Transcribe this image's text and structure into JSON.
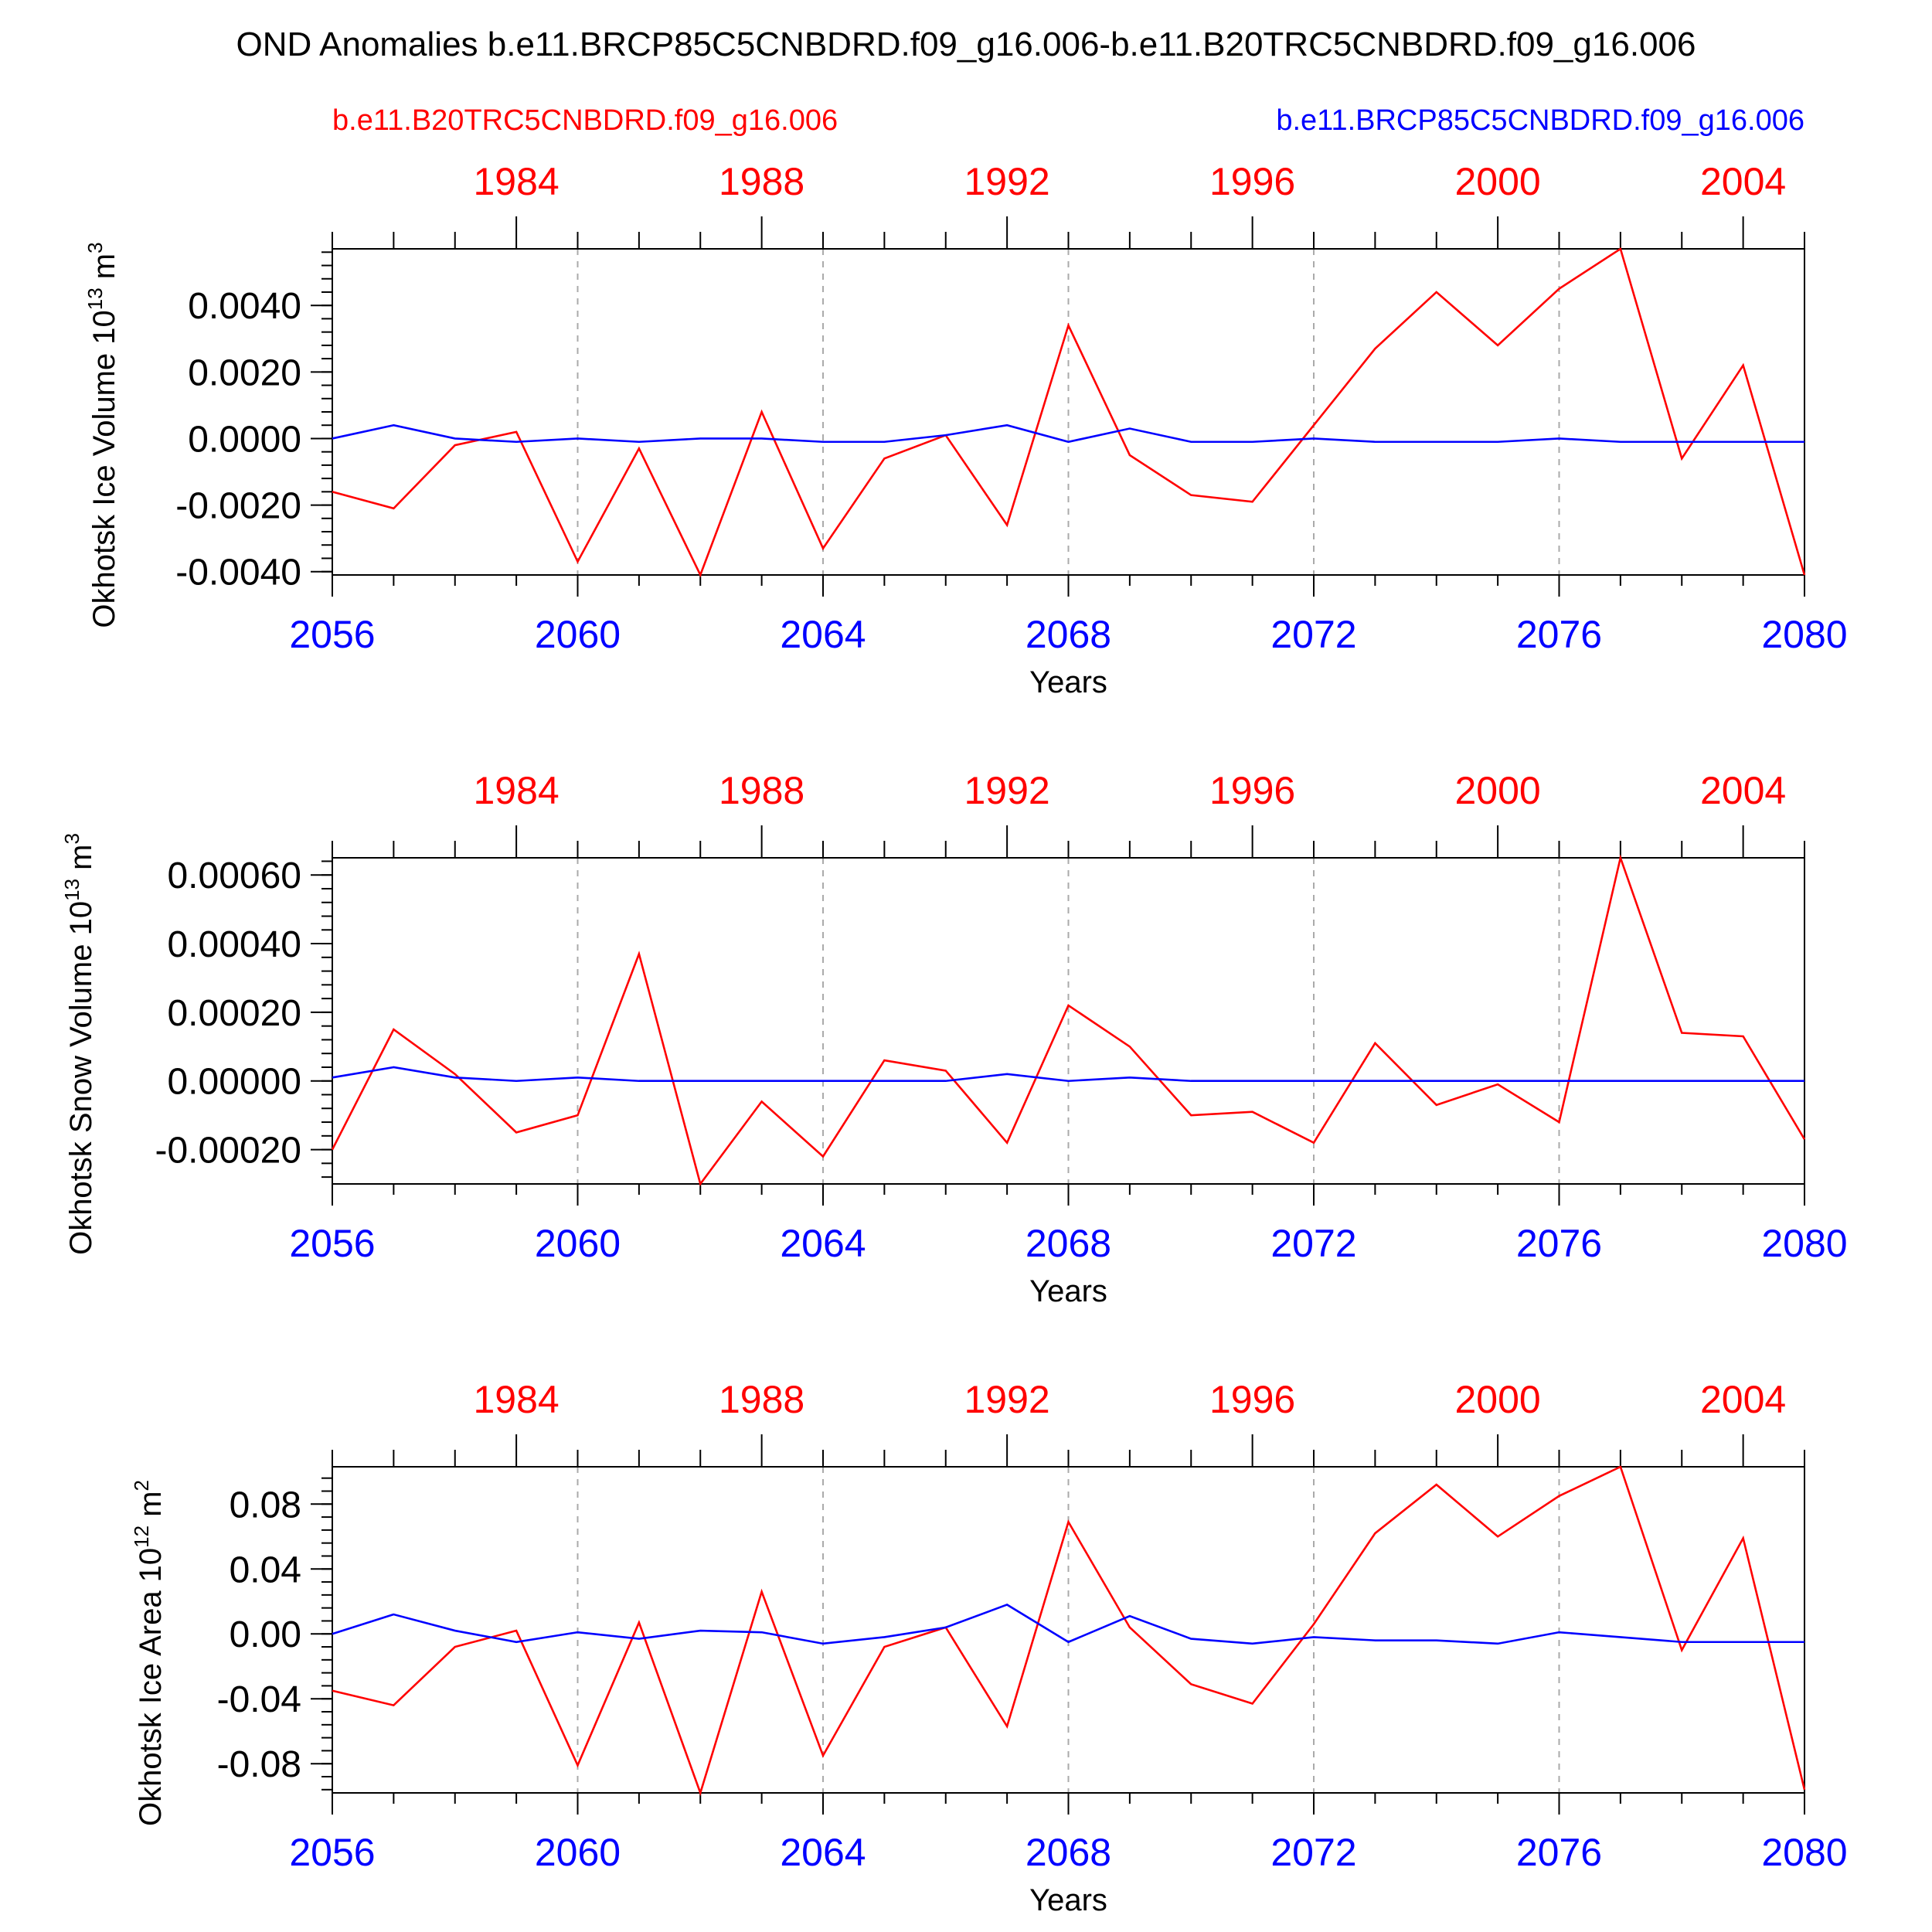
{
  "title": "OND Anomalies b.e11.BRCP85C5CNBDRD.f09_g16.006-b.e11.B20TRC5CNBDRD.f09_g16.006",
  "legend": {
    "red_label": "b.e11.B20TRC5CNBDRD.f09_g16.006",
    "blue_label": "b.e11.BRCP85C5CNBDRD.f09_g16.006"
  },
  "colors": {
    "red": "#ff0000",
    "blue": "#0000ff",
    "axis": "#000000",
    "grid": "#aaaaaa"
  },
  "chart_data": [
    {
      "type": "line",
      "ylabel": "Okhotsk Ice Volume 10",
      "ylabel_exp": "13",
      "ylabel_unit": "m",
      "ylabel_unit_exp": "3",
      "xlabel": "Years",
      "x_bottom": [
        2056,
        2057,
        2058,
        2059,
        2060,
        2061,
        2062,
        2063,
        2064,
        2065,
        2066,
        2067,
        2068,
        2069,
        2070,
        2071,
        2072,
        2073,
        2074,
        2075,
        2076,
        2077,
        2078,
        2079,
        2080
      ],
      "x_bottom_ticks": [
        "2056",
        "2060",
        "2064",
        "2068",
        "2072",
        "2076",
        "2080"
      ],
      "x_top_ticks": [
        "1984",
        "1988",
        "1992",
        "1996",
        "2000",
        "2004"
      ],
      "ylim": [
        -0.0041,
        0.0057
      ],
      "yticks": [
        "0.0040",
        "0.0020",
        "0.0000",
        "-0.0020",
        "-0.0040"
      ],
      "ytick_values": [
        0.004,
        0.002,
        0.0,
        -0.002,
        -0.004
      ],
      "series": [
        {
          "name": "b.e11.B20TRC5CNBDRD.f09_g16.006",
          "color": "red",
          "values": [
            -0.0016,
            -0.0021,
            -0.0002,
            0.0002,
            -0.0037,
            -0.0003,
            -0.0041,
            0.0008,
            -0.0033,
            -0.0006,
            0.0001,
            -0.0026,
            0.0034,
            -0.0005,
            -0.0017,
            -0.0019,
            0.0004,
            0.0027,
            0.0044,
            0.0028,
            0.0045,
            0.0057,
            -0.0006,
            0.0022,
            -0.0041
          ]
        },
        {
          "name": "b.e11.BRCP85C5CNBDRD.f09_g16.006",
          "color": "blue",
          "values": [
            0.0,
            0.0004,
            0.0,
            -0.0001,
            0.0,
            -0.0001,
            0.0,
            0.0,
            -0.0001,
            -0.0001,
            0.0001,
            0.0004,
            -0.0001,
            0.0003,
            -0.0001,
            -0.0001,
            0.0,
            -0.0001,
            -0.0001,
            -0.0001,
            0.0,
            -0.0001,
            -0.0001,
            -0.0001,
            -0.0001
          ]
        }
      ]
    },
    {
      "type": "line",
      "ylabel": "Okhotsk Snow Volume 10",
      "ylabel_exp": "13",
      "ylabel_unit": "m",
      "ylabel_unit_exp": "3",
      "xlabel": "Years",
      "x_bottom": [
        2056,
        2057,
        2058,
        2059,
        2060,
        2061,
        2062,
        2063,
        2064,
        2065,
        2066,
        2067,
        2068,
        2069,
        2070,
        2071,
        2072,
        2073,
        2074,
        2075,
        2076,
        2077,
        2078,
        2079,
        2080
      ],
      "x_bottom_ticks": [
        "2056",
        "2060",
        "2064",
        "2068",
        "2072",
        "2076",
        "2080"
      ],
      "x_top_ticks": [
        "1984",
        "1988",
        "1992",
        "1996",
        "2000",
        "2004"
      ],
      "ylim": [
        -0.0003,
        0.00065
      ],
      "yticks": [
        "0.00060",
        "0.00040",
        "0.00020",
        "0.00000",
        "-0.00020"
      ],
      "ytick_values": [
        0.0006,
        0.0004,
        0.0002,
        0.0,
        -0.0002
      ],
      "series": [
        {
          "name": "b.e11.B20TRC5CNBDRD.f09_g16.006",
          "color": "red",
          "values": [
            -0.0002,
            0.00015,
            2e-05,
            -0.00015,
            -0.0001,
            0.00037,
            -0.0003,
            -6e-05,
            -0.00022,
            6e-05,
            3e-05,
            -0.00018,
            0.00022,
            0.0001,
            -0.0001,
            -9e-05,
            -0.00018,
            0.00011,
            -7e-05,
            -1e-05,
            -0.00012,
            0.00065,
            0.00014,
            0.00013,
            -0.00017
          ]
        },
        {
          "name": "b.e11.BRCP85C5CNBDRD.f09_g16.006",
          "color": "blue",
          "values": [
            1e-05,
            4e-05,
            1e-05,
            0.0,
            1e-05,
            0.0,
            0.0,
            0.0,
            0.0,
            0.0,
            0.0,
            2e-05,
            0.0,
            1e-05,
            0.0,
            0.0,
            0.0,
            0.0,
            0.0,
            0.0,
            0.0,
            0.0,
            0.0,
            0.0,
            0.0
          ]
        }
      ]
    },
    {
      "type": "line",
      "ylabel": "Okhotsk Ice Area 10",
      "ylabel_exp": "12",
      "ylabel_unit": "m",
      "ylabel_unit_exp": "2",
      "xlabel": "Years",
      "x_bottom": [
        2056,
        2057,
        2058,
        2059,
        2060,
        2061,
        2062,
        2063,
        2064,
        2065,
        2066,
        2067,
        2068,
        2069,
        2070,
        2071,
        2072,
        2073,
        2074,
        2075,
        2076,
        2077,
        2078,
        2079,
        2080
      ],
      "x_bottom_ticks": [
        "2056",
        "2060",
        "2064",
        "2068",
        "2072",
        "2076",
        "2080"
      ],
      "x_top_ticks": [
        "1984",
        "1988",
        "1992",
        "1996",
        "2000",
        "2004"
      ],
      "ylim": [
        -0.098,
        0.103
      ],
      "yticks": [
        "0.08",
        "0.04",
        "0.00",
        "-0.04",
        "-0.08"
      ],
      "ytick_values": [
        0.08,
        0.04,
        0.0,
        -0.04,
        -0.08
      ],
      "series": [
        {
          "name": "b.e11.B20TRC5CNBDRD.f09_g16.006",
          "color": "red",
          "values": [
            -0.035,
            -0.044,
            -0.008,
            0.002,
            -0.081,
            0.007,
            -0.098,
            0.026,
            -0.075,
            -0.008,
            0.004,
            -0.057,
            0.069,
            0.004,
            -0.031,
            -0.043,
            0.006,
            0.062,
            0.092,
            0.06,
            0.085,
            0.103,
            -0.01,
            0.059,
            -0.096
          ]
        },
        {
          "name": "b.e11.BRCP85C5CNBDRD.f09_g16.006",
          "color": "blue",
          "values": [
            0.0,
            0.012,
            0.002,
            -0.005,
            0.001,
            -0.003,
            0.002,
            0.001,
            -0.006,
            -0.002,
            0.004,
            0.018,
            -0.005,
            0.011,
            -0.003,
            -0.006,
            -0.002,
            -0.004,
            -0.004,
            -0.006,
            0.001,
            -0.002,
            -0.005,
            -0.005,
            -0.005
          ]
        }
      ]
    }
  ]
}
